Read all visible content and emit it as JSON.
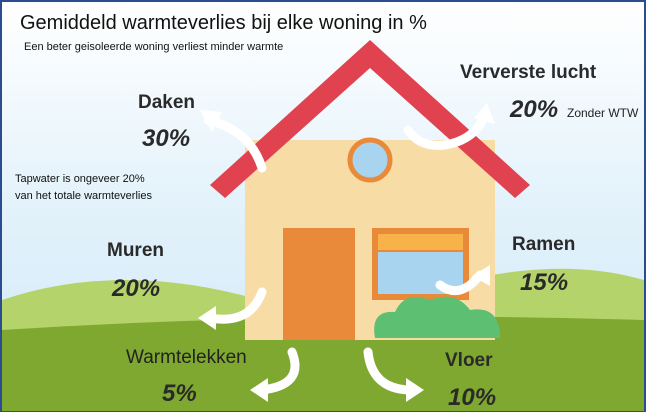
{
  "header": {
    "title": "Gemiddeld warmteverlies bij elke woning in %",
    "subtitle": "Een beter geisoleerde woning verliest minder warmte"
  },
  "note": "Tapwater is ongeveer 20%\nvan het totale warmteverlies",
  "items": [
    {
      "label": "Daken",
      "value": "30%"
    },
    {
      "label": "Ververste lucht",
      "value": "20%",
      "note": "Zonder WTW"
    },
    {
      "label": "Muren",
      "value": "20%"
    },
    {
      "label": "Ramen",
      "value": "15%"
    },
    {
      "label": "Warmtelekken",
      "value": "5%"
    },
    {
      "label": "Vloer",
      "value": "10%"
    }
  ]
}
